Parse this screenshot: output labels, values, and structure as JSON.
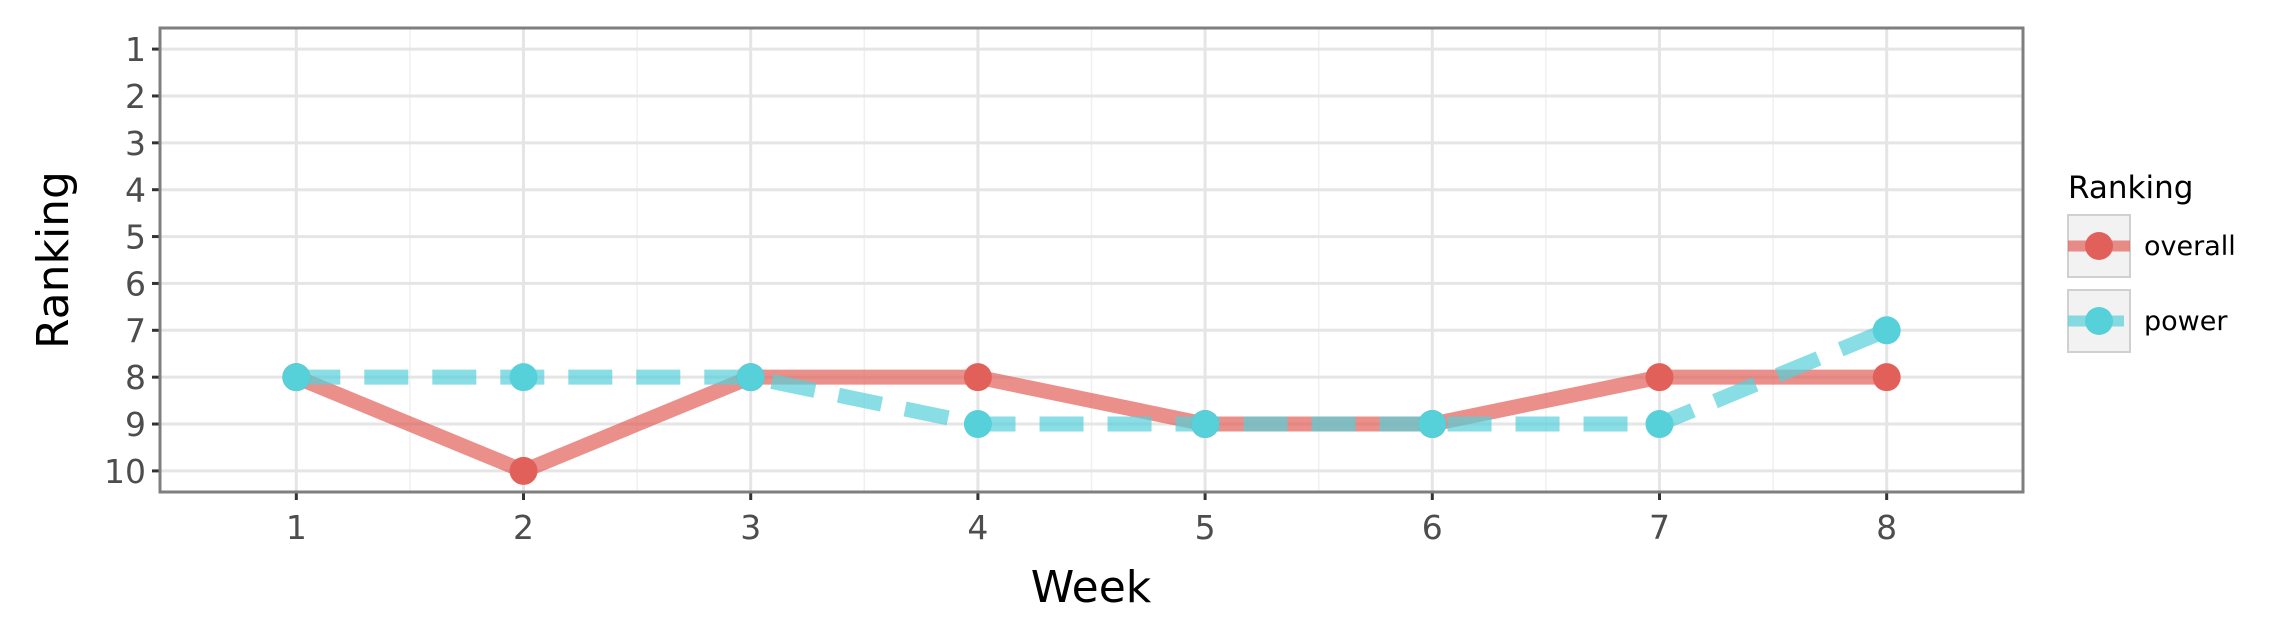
{
  "chart_data": {
    "type": "line",
    "title": "",
    "xlabel": "Week",
    "ylabel": "Ranking",
    "x": [
      1,
      2,
      3,
      4,
      5,
      6,
      7,
      8
    ],
    "xlim": [
      0.4,
      8.6
    ],
    "ylim": [
      10.45,
      0.55
    ],
    "y_reversed": true,
    "x_ticks": [
      1,
      2,
      3,
      4,
      5,
      6,
      7,
      8
    ],
    "y_ticks": [
      1,
      2,
      3,
      4,
      5,
      6,
      7,
      8,
      9,
      10
    ],
    "grid": true,
    "legend": {
      "title": "Ranking",
      "position": "right"
    },
    "series": [
      {
        "name": "overall",
        "values": [
          8,
          10,
          8,
          8,
          9,
          9,
          8,
          8
        ],
        "color": "#e2605a",
        "linestyle": "solid"
      },
      {
        "name": "power",
        "values": [
          8,
          8,
          8,
          9,
          9,
          9,
          9,
          7
        ],
        "color": "#56d0d9",
        "linestyle": "dashed"
      }
    ]
  }
}
